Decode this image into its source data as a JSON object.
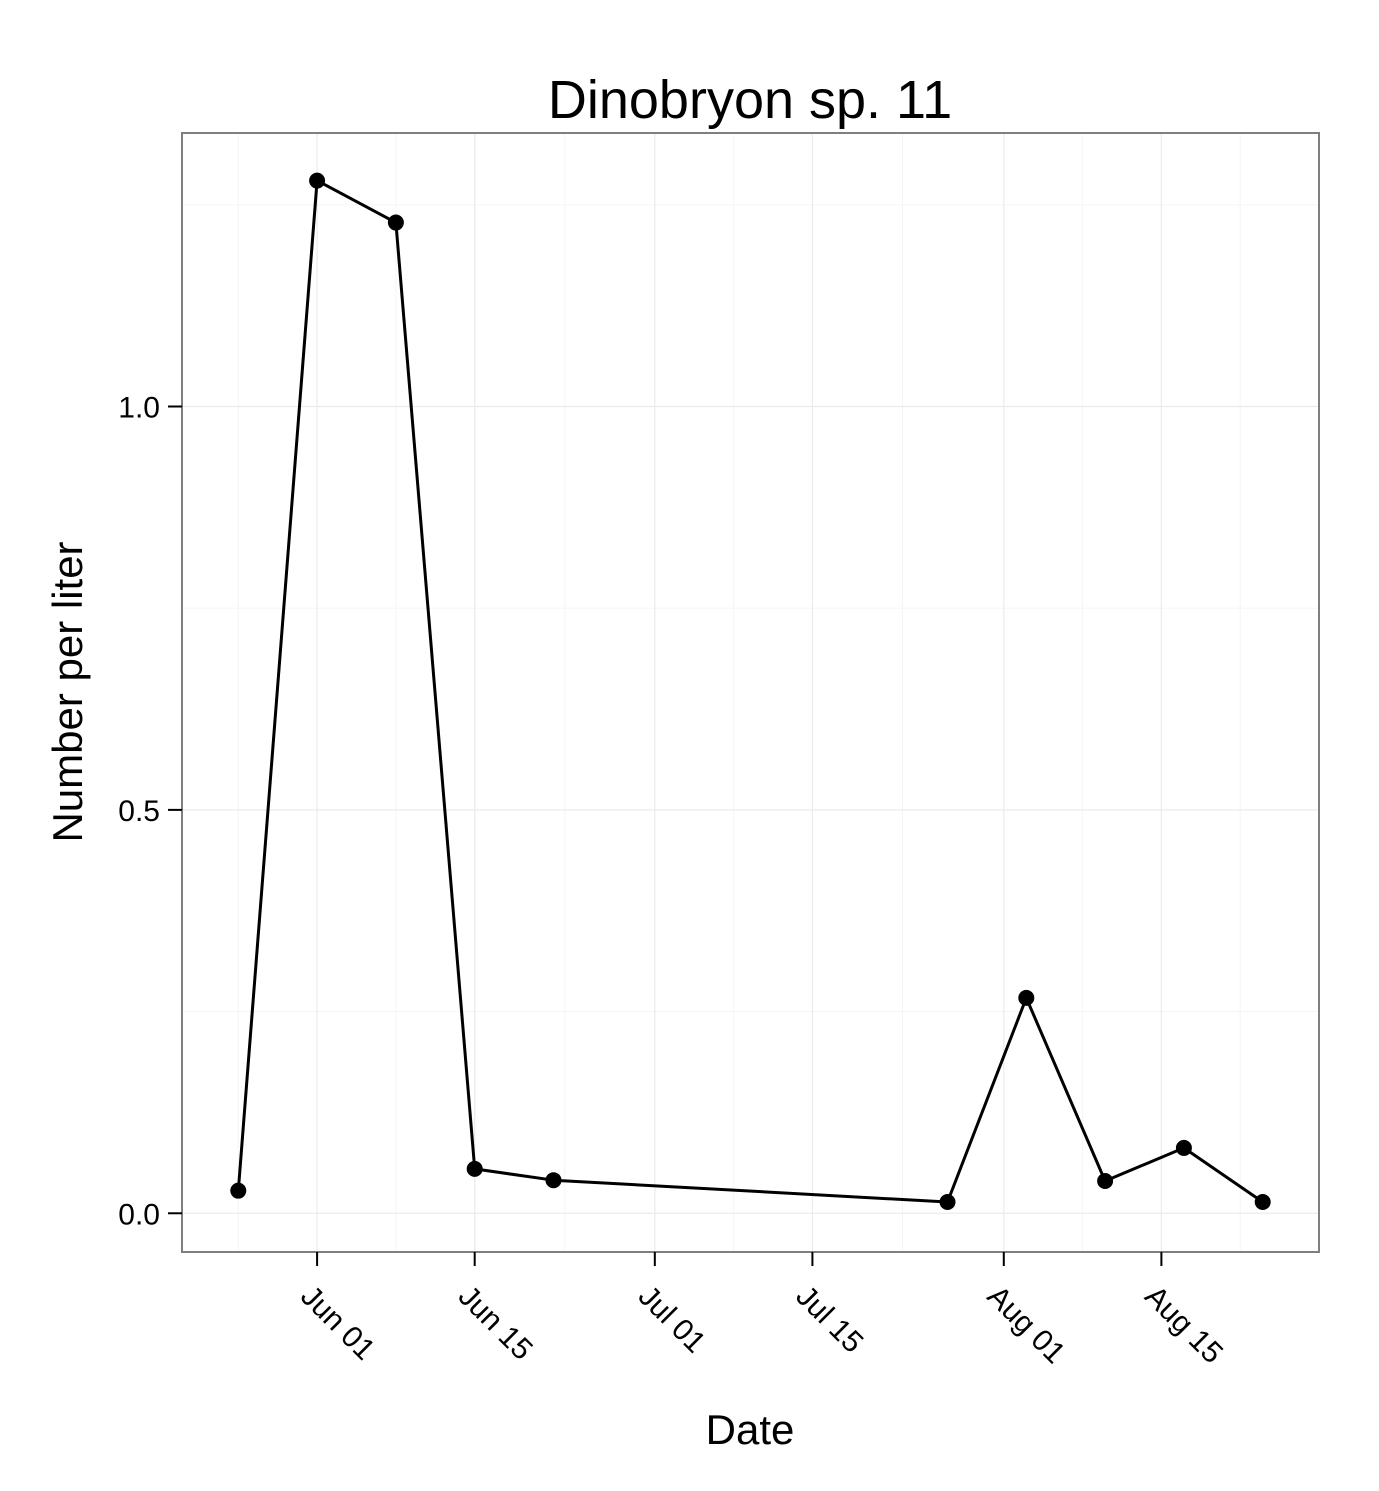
{
  "chart_data": {
    "type": "line",
    "title": "Dinobryon sp. 11",
    "xlabel": "Date",
    "ylabel": "Number per liter",
    "x_ticks": [
      {
        "date": "2013-06-01",
        "label": "Jun 01"
      },
      {
        "date": "2013-06-15",
        "label": "Jun 15"
      },
      {
        "date": "2013-07-01",
        "label": "Jul 01"
      },
      {
        "date": "2013-07-15",
        "label": "Jul 15"
      },
      {
        "date": "2013-08-01",
        "label": "Aug 01"
      },
      {
        "date": "2013-08-15",
        "label": "Aug 15"
      }
    ],
    "y_ticks": [
      {
        "value": 0.0,
        "label": "0.0"
      },
      {
        "value": 0.5,
        "label": "0.5"
      },
      {
        "value": 1.0,
        "label": "1.0"
      }
    ],
    "xlim": [
      "2013-05-20",
      "2013-08-29"
    ],
    "ylim": [
      -0.048,
      1.339
    ],
    "grid": true,
    "series": [
      {
        "x": [
          "2013-05-25",
          "2013-06-01",
          "2013-06-08",
          "2013-06-15",
          "2013-06-22",
          "2013-07-27",
          "2013-08-03",
          "2013-08-10",
          "2013-08-17",
          "2013-08-24"
        ],
        "y": [
          0.028,
          1.28,
          1.228,
          0.055,
          0.041,
          0.014,
          0.267,
          0.04,
          0.081,
          0.014
        ]
      }
    ],
    "colors": {
      "line": "#000000",
      "point": "#000000",
      "panel_border": "#7f7f7f",
      "grid": "#ebebeb"
    }
  }
}
